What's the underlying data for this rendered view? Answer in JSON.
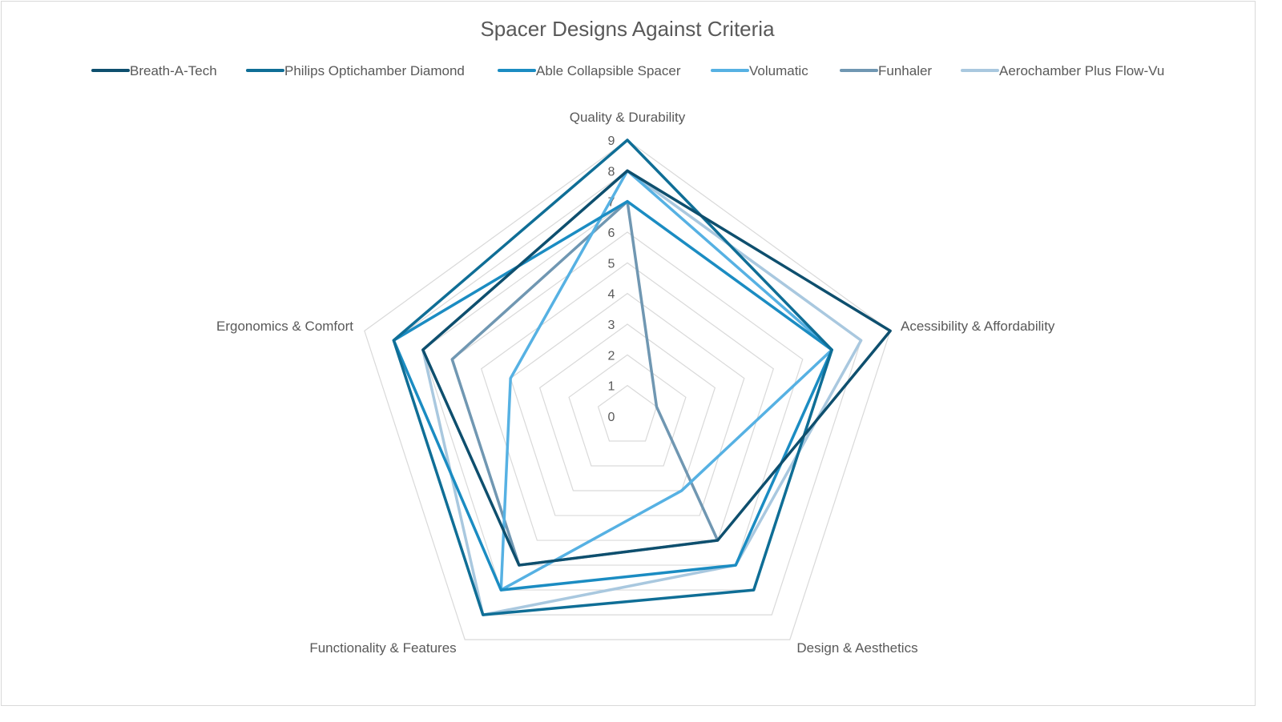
{
  "chart_data": {
    "type": "radar",
    "title": "Spacer Designs Against Criteria",
    "categories": [
      "Quality & Durability",
      "Acessibility & Affordability",
      "Design & Aesthetics",
      "Functionality & Features",
      "Ergonomics & Comfort"
    ],
    "rlim": [
      0,
      9
    ],
    "ticks": [
      "0",
      "1",
      "2",
      "3",
      "4",
      "5",
      "6",
      "7",
      "8",
      "9"
    ],
    "grid": true,
    "legend": "top",
    "series": [
      {
        "name": "Breath-A-Tech",
        "color": "#0e4f6e",
        "values": [
          8,
          9,
          5,
          6,
          7
        ]
      },
      {
        "name": "Philips Optichamber Diamond",
        "color": "#0f6e96",
        "values": [
          9,
          7,
          7,
          8,
          8
        ]
      },
      {
        "name": "Able Collapsible Spacer",
        "color": "#1b8cc2",
        "values": [
          7,
          7,
          6,
          7,
          8
        ]
      },
      {
        "name": "Volumatic",
        "color": "#56b1e3",
        "values": [
          8,
          7,
          3,
          7,
          4
        ]
      },
      {
        "name": "Funhaler",
        "color": "#7097b2",
        "values": [
          7,
          1,
          5,
          6,
          6
        ]
      },
      {
        "name": "Aerochamber Plus Flow-Vu",
        "color": "#a9c8df",
        "values": [
          8,
          8,
          6,
          8,
          7
        ]
      }
    ]
  }
}
